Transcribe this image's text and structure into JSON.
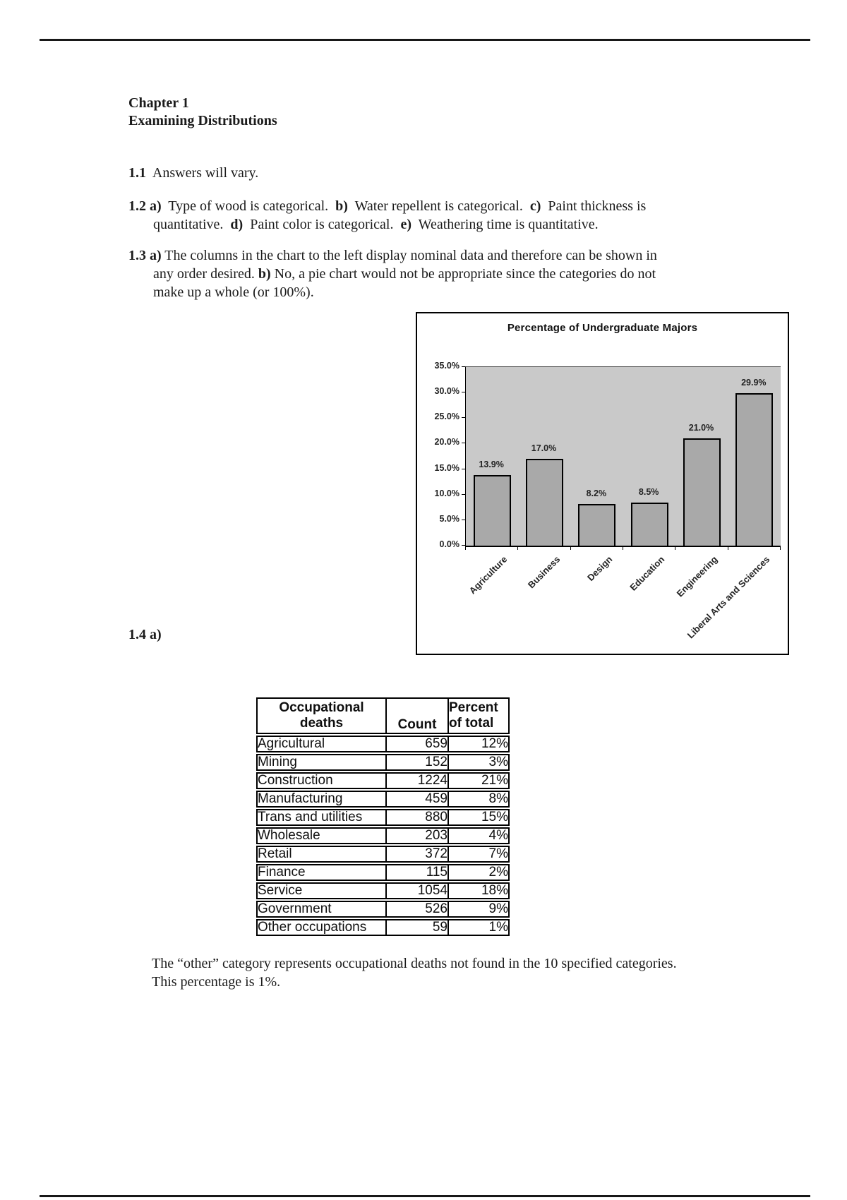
{
  "page": {
    "heading1": "Chapter 1",
    "heading2": "Examining Distributions"
  },
  "paragraphs": {
    "p11": [
      [
        [
          "b",
          "1.1"
        ],
        [
          "r",
          "  Answers will vary."
        ]
      ]
    ],
    "p12": [
      [
        [
          "b",
          "1.2 a)"
        ],
        [
          "r",
          "  Type of wood is categorical.  "
        ],
        [
          "b",
          "b)"
        ],
        [
          "r",
          "  Water repellent is categorical.  "
        ],
        [
          "b",
          "c)"
        ],
        [
          "r",
          "  Paint thickness is"
        ]
      ],
      [
        [
          "r",
          "quantitative.  "
        ],
        [
          "b",
          "d)"
        ],
        [
          "r",
          "  Paint color is categorical.  "
        ],
        [
          "b",
          "e)"
        ],
        [
          "r",
          "  Weathering time is quantitative."
        ]
      ]
    ],
    "p13": [
      [
        [
          "b",
          "1.3 a)"
        ],
        [
          "r",
          " The columns in the chart to the left display nominal data and therefore can be shown in"
        ]
      ],
      [
        [
          "r",
          "any order desired. "
        ],
        [
          "b",
          "b)"
        ],
        [
          "r",
          " No, a pie chart would not be appropriate since the categories do not"
        ]
      ],
      [
        [
          "r",
          "make up a whole (or 100%)."
        ]
      ]
    ],
    "p14": [
      [
        [
          "b",
          "1.4 a)"
        ]
      ]
    ],
    "caption": [
      [
        [
          "r",
          "The “other” category represents occupational deaths not found in the 10 specified categories."
        ]
      ],
      [
        [
          "r",
          "This percentage is 1%."
        ]
      ]
    ]
  },
  "chart_data": {
    "type": "bar",
    "title": "Percentage of Undergraduate Majors",
    "categories": [
      "Agriculture",
      "Business",
      "Design",
      "Education",
      "Engineering",
      "Liberal Arts and Sciences"
    ],
    "values": [
      13.9,
      17.0,
      8.2,
      8.5,
      21.0,
      29.9
    ],
    "value_labels": [
      "13.9%",
      "17.0%",
      "8.2%",
      "8.5%",
      "21.0%",
      "29.9%"
    ],
    "xlabel": "",
    "ylabel": "",
    "ylim": [
      0,
      35
    ],
    "grid": false,
    "legend_position": "none",
    "plot_bg": "#c9c9c9",
    "bar_fill": "#a9a9a9",
    "yticks": [
      {
        "label": "35.0%",
        "value": 35
      },
      {
        "label": "30.0%",
        "value": 30
      },
      {
        "label": "25.0%",
        "value": 25
      },
      {
        "label": "20.0%",
        "value": 20
      },
      {
        "label": "15.0%",
        "value": 15
      },
      {
        "label": "10.0%",
        "value": 10
      },
      {
        "label": "5.0%",
        "value": 5
      },
      {
        "label": "0.0%",
        "value": 0
      }
    ]
  },
  "table": {
    "col1_header": [
      "Occupational",
      "deaths"
    ],
    "col2_header": [
      "Count"
    ],
    "col3_header": [
      "Percent",
      "of total"
    ],
    "rows": [
      [
        "Agricultural",
        "659",
        "12%"
      ],
      [
        "Mining",
        "152",
        "3%"
      ],
      [
        "Construction",
        "1224",
        "21%"
      ],
      [
        "Manufacturing",
        "459",
        "8%"
      ],
      [
        "Trans and utilities",
        "880",
        "15%"
      ],
      [
        "Wholesale",
        "203",
        "4%"
      ],
      [
        "Retail",
        "372",
        "7%"
      ],
      [
        "Finance",
        "115",
        "2%"
      ],
      [
        "Service",
        "1054",
        "18%"
      ],
      [
        "Government",
        "526",
        "9%"
      ],
      [
        "Other occupations",
        "59",
        "1%"
      ]
    ]
  }
}
